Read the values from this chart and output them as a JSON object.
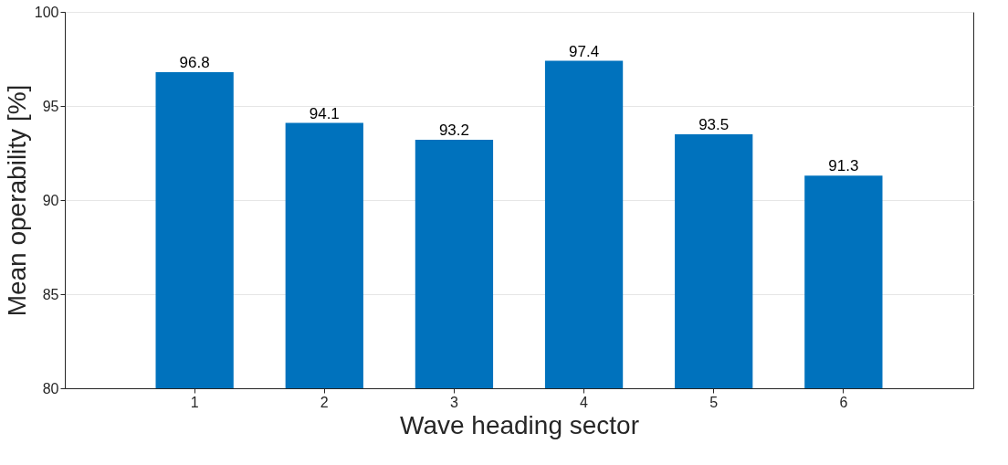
{
  "chart_data": {
    "type": "bar",
    "xlabel": "Wave heading sector",
    "ylabel": "Mean operability [%]",
    "categories": [
      "1",
      "2",
      "3",
      "4",
      "5",
      "6"
    ],
    "values": [
      96.8,
      94.1,
      93.2,
      97.4,
      93.5,
      91.3
    ],
    "color": "#0072bd",
    "ylim": [
      80,
      100
    ],
    "yticks": [
      80,
      85,
      90,
      95,
      100
    ],
    "grid": "y",
    "data_labels": true
  }
}
